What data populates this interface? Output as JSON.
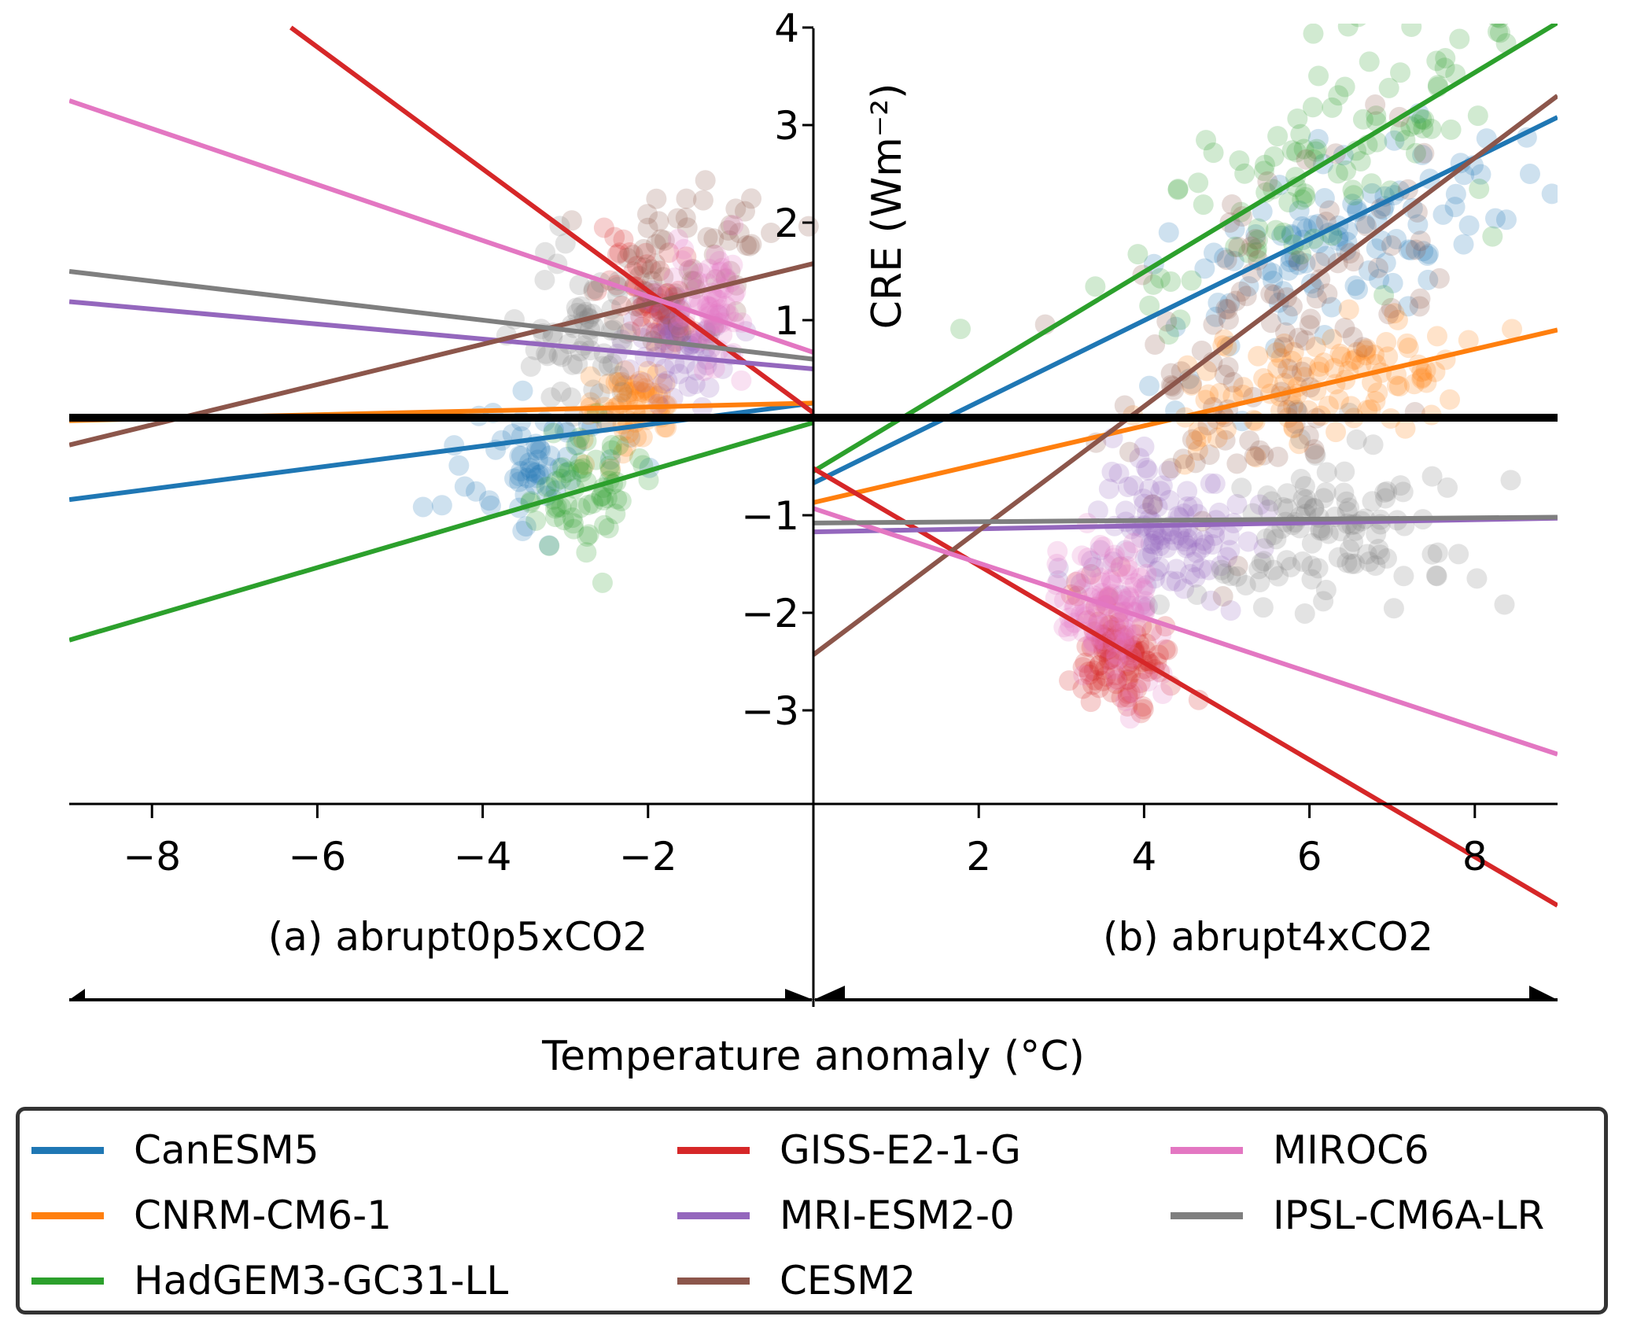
{
  "chart_data": {
    "type": "scatter",
    "title": "",
    "ylabel": "CRE (Wm⁻²)",
    "xlabel": "Temperature anomaly (°C)",
    "xlim": [
      -9,
      9
    ],
    "ylim": [
      -4,
      4
    ],
    "grid": false,
    "x_ticks": [
      -8,
      -6,
      -4,
      -2,
      2,
      4,
      6,
      8
    ],
    "x_tick_labels": [
      "−8",
      "−6",
      "−4",
      "−2",
      "2",
      "4",
      "6",
      "8"
    ],
    "y_ticks": [
      4,
      3,
      2,
      1,
      -1,
      -2,
      -3
    ],
    "y_tick_labels": [
      "4",
      "3",
      "2",
      "1",
      "−1",
      "−2",
      "−3"
    ],
    "panels": [
      {
        "label": "(a) abrupt0p5xCO2",
        "xrange": [
          -9,
          0
        ]
      },
      {
        "label": "(b) abrupt4xCO2",
        "xrange": [
          0,
          9
        ]
      }
    ],
    "zero_line": 0,
    "legend_position": "bottom",
    "series": [
      {
        "name": "CanESM5",
        "color": "#1f77b4",
        "fit_a": {
          "x": [
            -9,
            0
          ],
          "y": [
            -0.84,
            0.15
          ]
        },
        "fit_b": {
          "x": [
            0,
            9
          ],
          "y": [
            -0.67,
            3.08
          ]
        },
        "cloud_a": {
          "cx": -3.4,
          "cy": -0.45,
          "sx": 0.5,
          "sy": 0.35
        },
        "cloud_b": {
          "cx": 6.5,
          "cy": 1.9,
          "sx": 1.1,
          "sy": 0.5
        }
      },
      {
        "name": "CNRM-CM6-1",
        "color": "#ff7f0e",
        "fit_a": {
          "x": [
            -9,
            0
          ],
          "y": [
            -0.03,
            0.15
          ]
        },
        "fit_b": {
          "x": [
            0,
            9
          ],
          "y": [
            -0.87,
            0.9
          ]
        },
        "cloud_a": {
          "cx": -2.2,
          "cy": 0.1,
          "sx": 0.3,
          "sy": 0.2
        },
        "cloud_b": {
          "cx": 6.0,
          "cy": 0.3,
          "sx": 0.9,
          "sy": 0.3
        }
      },
      {
        "name": "HadGEM3-GC31-LL",
        "color": "#2ca02c",
        "fit_a": {
          "x": [
            -9,
            0
          ],
          "y": [
            -2.28,
            -0.05
          ]
        },
        "fit_b": {
          "x": [
            0,
            9
          ],
          "y": [
            -0.55,
            4.05
          ]
        },
        "cloud_a": {
          "cx": -2.8,
          "cy": -0.75,
          "sx": 0.35,
          "sy": 0.3
        },
        "cloud_b": {
          "cx": 6.3,
          "cy": 2.8,
          "sx": 1.3,
          "sy": 0.6
        }
      },
      {
        "name": "GISS-E2-1-G",
        "color": "#d62728",
        "fit_a": {
          "x": [
            -6.32,
            0
          ],
          "y": [
            4.0,
            0.05
          ]
        },
        "fit_b": {
          "x": [
            0,
            9
          ],
          "y": [
            -0.52,
            -5.0
          ]
        },
        "cloud_a": {
          "cx": -2.0,
          "cy": 1.3,
          "sx": 0.25,
          "sy": 0.25
        },
        "cloud_b": {
          "cx": 3.7,
          "cy": -2.4,
          "sx": 0.3,
          "sy": 0.3
        }
      },
      {
        "name": "MRI-ESM2-0",
        "color": "#9467bd",
        "fit_a": {
          "x": [
            -9,
            0
          ],
          "y": [
            1.19,
            0.5
          ]
        },
        "fit_b": {
          "x": [
            0,
            9
          ],
          "y": [
            -1.17,
            -1.03
          ]
        },
        "cloud_a": {
          "cx": -1.7,
          "cy": 0.7,
          "sx": 0.3,
          "sy": 0.3
        },
        "cloud_b": {
          "cx": 4.3,
          "cy": -1.2,
          "sx": 0.5,
          "sy": 0.4
        }
      },
      {
        "name": "CESM2",
        "color": "#8c564b",
        "fit_a": {
          "x": [
            -9,
            0
          ],
          "y": [
            -0.28,
            1.58
          ]
        },
        "fit_b": {
          "x": [
            0,
            9
          ],
          "y": [
            -2.43,
            3.3
          ]
        },
        "cloud_a": {
          "cx": -1.5,
          "cy": 1.6,
          "sx": 0.5,
          "sy": 0.5
        },
        "cloud_b": {
          "cx": 5.6,
          "cy": 0.9,
          "sx": 1.0,
          "sy": 0.8
        }
      },
      {
        "name": "MIROC6",
        "color": "#e377c2",
        "fit_a": {
          "x": [
            -9,
            0
          ],
          "y": [
            3.25,
            0.67
          ]
        },
        "fit_b": {
          "x": [
            0,
            9
          ],
          "y": [
            -0.93,
            -3.45
          ]
        },
        "cloud_a": {
          "cx": -1.2,
          "cy": 1.1,
          "sx": 0.25,
          "sy": 0.3
        },
        "cloud_b": {
          "cx": 3.6,
          "cy": -2.0,
          "sx": 0.3,
          "sy": 0.35
        }
      },
      {
        "name": "IPSL-CM6A-LR",
        "color": "#7f7f7f",
        "fit_a": {
          "x": [
            -9,
            0
          ],
          "y": [
            1.5,
            0.6
          ]
        },
        "fit_b": {
          "x": [
            0,
            9
          ],
          "y": [
            -1.08,
            -1.02
          ]
        },
        "cloud_a": {
          "cx": -2.9,
          "cy": 1.0,
          "sx": 0.35,
          "sy": 0.4
        },
        "cloud_b": {
          "cx": 6.3,
          "cy": -1.1,
          "sx": 0.8,
          "sy": 0.4
        }
      }
    ]
  }
}
